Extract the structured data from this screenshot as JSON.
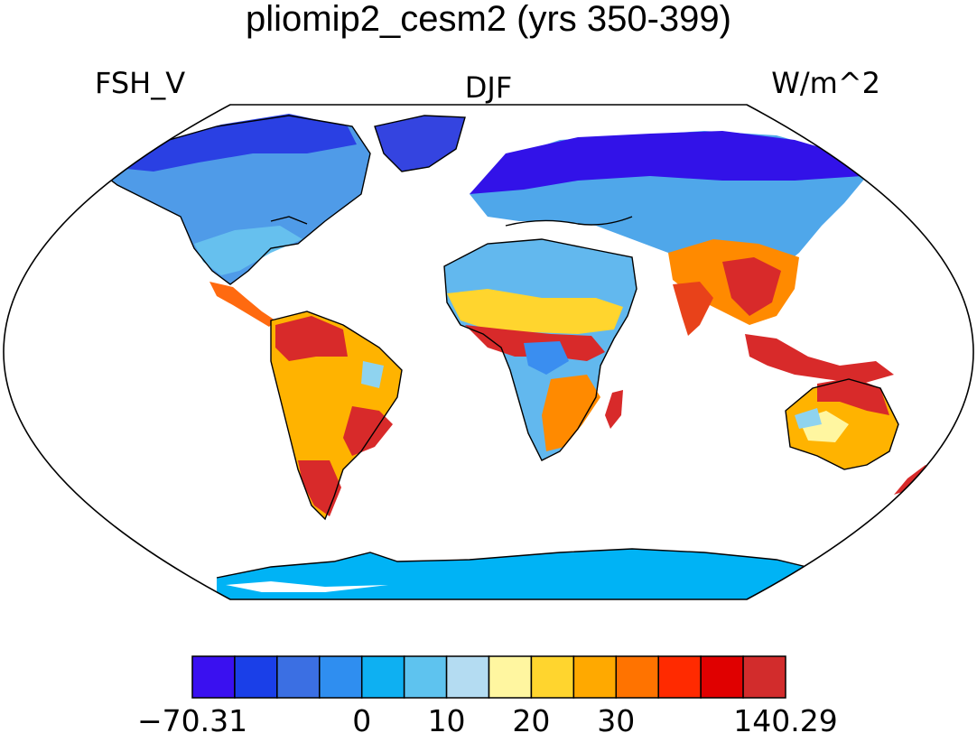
{
  "title": "pliomip2_cesm2 (yrs 350-399)",
  "left_label": "FSH_V",
  "center_label": "DJF",
  "right_label": "W/m^2",
  "colorbar": {
    "colors": [
      "#3a10f0",
      "#1a3fe8",
      "#3b6fe3",
      "#2f8ef0",
      "#0eb0f2",
      "#5ec3ef",
      "#b4dcf2",
      "#fff6a0",
      "#ffd52e",
      "#ffa900",
      "#ff7300",
      "#ff2a00",
      "#e00000",
      "#d22c2c"
    ],
    "tick_labels": [
      {
        "label": "−70.31",
        "boundary": 0
      },
      {
        "label": "0",
        "boundary": 4
      },
      {
        "label": "10",
        "boundary": 6
      },
      {
        "label": "20",
        "boundary": 8
      },
      {
        "label": "30",
        "boundary": 10
      },
      {
        "label": "140.29",
        "boundary": 14
      }
    ]
  },
  "map": {
    "projection": "robinson",
    "variable": "FSH_V",
    "season": "DJF",
    "units": "W/m^2"
  }
}
